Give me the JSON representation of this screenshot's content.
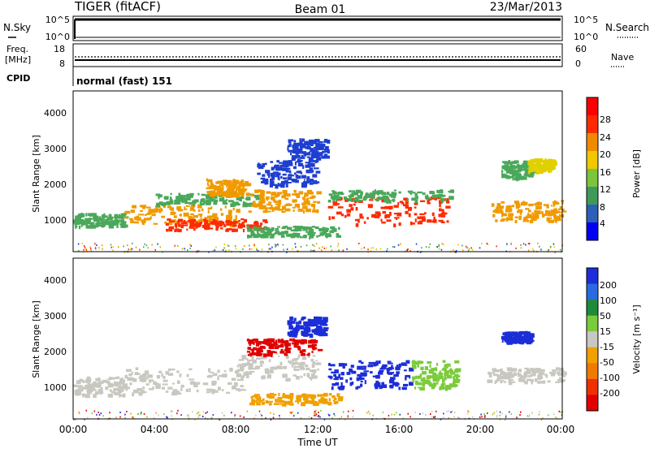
{
  "header": {
    "station": "TIGER (fitACF)",
    "beam": "Beam 01",
    "date": "23/Mar/2013"
  },
  "top_panels": {
    "nsky_label": "N.Sky",
    "nsky_ticks": [
      "10^5",
      "10^0"
    ],
    "nsearch_label": "N.Search",
    "nsearch_ticks": [
      "10^5",
      "10^0"
    ],
    "freq_label_1": "Freq.",
    "freq_label_2": "[MHz]",
    "freq_ticks": [
      "18",
      "8"
    ],
    "nave_label": "Nave",
    "nave_ticks": [
      "60",
      "0"
    ],
    "cpid_label": "CPID",
    "cpid_text": "normal (fast) 151"
  },
  "chart_data": [
    {
      "type": "heatmap",
      "name": "power",
      "ylabel": "Slant Range [km]",
      "yticks": [
        "1000",
        "2000",
        "3000",
        "4000"
      ],
      "ylim": [
        180,
        4600
      ],
      "colorbar": {
        "label": "Power [dB]",
        "ticks": [
          "4",
          "8",
          "12",
          "16",
          "20",
          "24",
          "28"
        ],
        "colors": [
          "#0000f0",
          "#2b5fb8",
          "#3f9a5a",
          "#7dc43a",
          "#f0c800",
          "#f08a00",
          "#ff2a00",
          "#ff0000"
        ]
      },
      "blobs": [
        {
          "t0": 0.0,
          "t1": 2.5,
          "r0": 900,
          "r1": 1250,
          "level": "green"
        },
        {
          "t0": 2.5,
          "t1": 8.0,
          "r0": 950,
          "r1": 1500,
          "level": "orange"
        },
        {
          "t0": 4.5,
          "t1": 9.5,
          "r0": 800,
          "r1": 1100,
          "level": "red"
        },
        {
          "t0": 4.0,
          "t1": 9.0,
          "r0": 1500,
          "r1": 1800,
          "level": "green"
        },
        {
          "t0": 6.5,
          "t1": 8.5,
          "r0": 1750,
          "r1": 2200,
          "level": "orange"
        },
        {
          "t0": 8.5,
          "t1": 12.0,
          "r0": 1300,
          "r1": 1900,
          "level": "orange"
        },
        {
          "t0": 9.0,
          "t1": 12.0,
          "r0": 2000,
          "r1": 2700,
          "level": "blue"
        },
        {
          "t0": 10.5,
          "t1": 12.5,
          "r0": 2700,
          "r1": 3300,
          "level": "blue"
        },
        {
          "t0": 8.5,
          "t1": 13.0,
          "r0": 600,
          "r1": 900,
          "level": "green"
        },
        {
          "t0": 12.5,
          "t1": 18.5,
          "r0": 950,
          "r1": 1700,
          "level": "red"
        },
        {
          "t0": 12.5,
          "t1": 18.5,
          "r0": 1600,
          "r1": 1900,
          "level": "green"
        },
        {
          "t0": 20.5,
          "t1": 24.0,
          "r0": 1050,
          "r1": 1600,
          "level": "orange"
        },
        {
          "t0": 21.0,
          "t1": 22.5,
          "r0": 2200,
          "r1": 2700,
          "level": "green"
        },
        {
          "t0": 22.3,
          "t1": 23.5,
          "r0": 2400,
          "r1": 2750,
          "level": "yellow"
        }
      ]
    },
    {
      "type": "heatmap",
      "name": "velocity",
      "ylabel": "Slant Range [km]",
      "yticks": [
        "1000",
        "2000",
        "3000",
        "4000"
      ],
      "ylim": [
        180,
        4600
      ],
      "colorbar": {
        "label": "Velocity [m s⁻¹]",
        "ticks": [
          "200",
          "100",
          "50",
          "15",
          "-15",
          "-50",
          "-100",
          "-200"
        ],
        "colors": [
          "#1c2ed8",
          "#2a6ae0",
          "#1e8a3a",
          "#7acc3a",
          "#c8c8c0",
          "#f0a000",
          "#f07a00",
          "#f03000",
          "#e00000"
        ]
      },
      "blobs": [
        {
          "t0": 0.0,
          "t1": 2.5,
          "r0": 850,
          "r1": 1350,
          "level": "gray"
        },
        {
          "t0": 2.5,
          "t1": 8.5,
          "r0": 900,
          "r1": 1600,
          "level": "gray"
        },
        {
          "t0": 8.0,
          "t1": 12.0,
          "r0": 1300,
          "r1": 2000,
          "level": "gray"
        },
        {
          "t0": 8.5,
          "t1": 12.0,
          "r0": 1950,
          "r1": 2400,
          "level": "red"
        },
        {
          "t0": 10.5,
          "t1": 12.3,
          "r0": 2500,
          "r1": 3000,
          "level": "blue"
        },
        {
          "t0": 8.5,
          "t1": 13.0,
          "r0": 600,
          "r1": 900,
          "level": "orange"
        },
        {
          "t0": 12.5,
          "t1": 16.5,
          "r0": 1050,
          "r1": 1800,
          "level": "blue"
        },
        {
          "t0": 16.5,
          "t1": 18.8,
          "r0": 1050,
          "r1": 1800,
          "level": "green"
        },
        {
          "t0": 20.3,
          "t1": 24.0,
          "r0": 1200,
          "r1": 1600,
          "level": "gray"
        },
        {
          "t0": 21.0,
          "t1": 22.5,
          "r0": 2300,
          "r1": 2600,
          "level": "blue"
        }
      ]
    }
  ],
  "x_axis": {
    "ticks": [
      "00:00",
      "04:00",
      "08:00",
      "12:00",
      "16:00",
      "20:00",
      "00:00"
    ],
    "label": "Time UT"
  }
}
